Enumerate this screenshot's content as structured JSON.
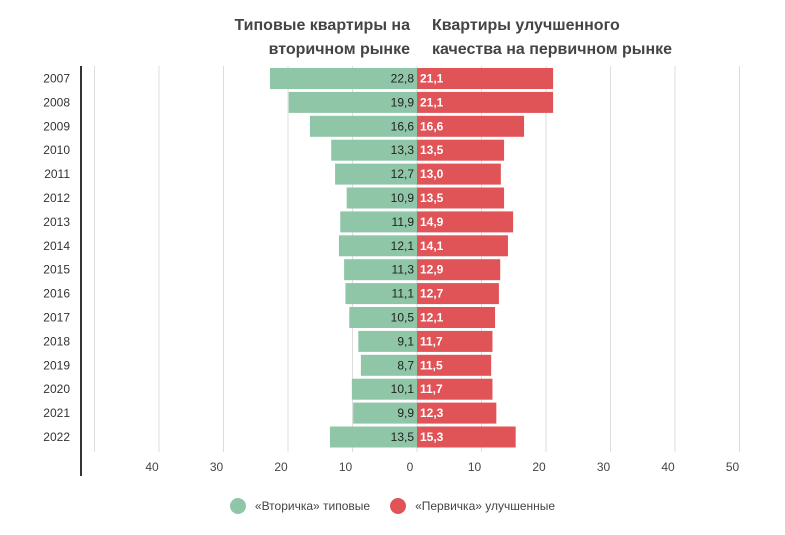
{
  "header": {
    "left_line1": "Типовые квартиры на",
    "left_line2": "вторичном рынке",
    "right_line1": "Квартиры улучшенного",
    "right_line2": "качества на первичном рынке"
  },
  "legend": {
    "left_label": "«Вторичка» типовые",
    "right_label": "«Первичка» улучшенные"
  },
  "colors": {
    "left": "#8fc6a8",
    "right": "#e05458",
    "grid": "#dddddd",
    "axis": "#333333"
  },
  "chart_data": {
    "type": "bar",
    "orientation": "horizontal-diverging",
    "categories": [
      "2007",
      "2008",
      "2009",
      "2010",
      "2011",
      "2012",
      "2013",
      "2014",
      "2015",
      "2016",
      "2017",
      "2018",
      "2019",
      "2020",
      "2021",
      "2022"
    ],
    "series": [
      {
        "name": "«Вторичка» типовые",
        "values": [
          22.8,
          19.9,
          16.6,
          13.3,
          12.7,
          10.9,
          11.9,
          12.1,
          11.3,
          11.1,
          10.5,
          9.1,
          8.7,
          10.1,
          9.9,
          13.5
        ],
        "labels": [
          "22,8",
          "19,9",
          "16,6",
          "13,3",
          "12,7",
          "10,9",
          "11,9",
          "12,1",
          "11,3",
          "11,1",
          "10,5",
          "9,1",
          "8,7",
          "10,1",
          "9,9",
          "13,5"
        ]
      },
      {
        "name": "«Первичка» улучшенные",
        "values": [
          21.1,
          21.1,
          16.6,
          13.5,
          13.0,
          13.5,
          14.9,
          14.1,
          12.9,
          12.7,
          12.1,
          11.7,
          11.5,
          11.7,
          12.3,
          15.3
        ],
        "labels": [
          "21,1",
          "21,1",
          "16,6",
          "13,5",
          "13,0",
          "13,5",
          "14,9",
          "14,1",
          "12,9",
          "12,7",
          "12,1",
          "11,7",
          "11,5",
          "11,7",
          "12,3",
          "15,3"
        ]
      }
    ],
    "x_ticks_left": [
      "40",
      "30",
      "20",
      "10",
      "0"
    ],
    "x_ticks_right": [
      "10",
      "20",
      "30",
      "40",
      "50"
    ],
    "xlim_left": [
      0,
      50
    ],
    "xlim_right": [
      0,
      50
    ]
  }
}
